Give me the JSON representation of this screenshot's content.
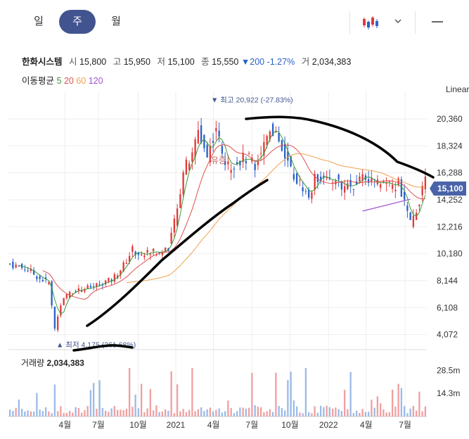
{
  "tabs": [
    {
      "label": "일",
      "active": false
    },
    {
      "label": "주",
      "active": true
    },
    {
      "label": "월",
      "active": false
    }
  ],
  "toolbar": {
    "chart_type_icon": "candlestick-icon",
    "dropdown_icon": "chevron-down-icon",
    "minimize_icon": "minus-icon"
  },
  "stock": {
    "name": "한화시스템",
    "open_label": "시",
    "open": "15,800",
    "high_label": "고",
    "high": "15,950",
    "low_label": "저",
    "low": "15,100",
    "close_label": "종",
    "close": "15,550",
    "change_arrow": "▼",
    "change": "200",
    "change_pct": "-1.27%",
    "volume_label": "거",
    "volume": "2,034,383"
  },
  "moving_average": {
    "label": "이동평균",
    "periods": [
      {
        "value": "5",
        "color": "#3a9a3a"
      },
      {
        "value": "20",
        "color": "#e0504f"
      },
      {
        "value": "60",
        "color": "#f0a050"
      },
      {
        "value": "120",
        "color": "#a050d0"
      }
    ]
  },
  "scale_label": "Linear",
  "colors": {
    "up": "#e03b3b",
    "down": "#2a62c9",
    "accent": "#41548f",
    "current_price_bg": "#4a63a8"
  },
  "chart_data": {
    "type": "candlestick",
    "price_axis": {
      "ticks": [
        "20,360",
        "18,324",
        "16,288",
        "14,252",
        "12,216",
        "10,180",
        "8,144",
        "6,108",
        "4,072"
      ],
      "ylim": [
        3200,
        21900
      ],
      "scale": "linear"
    },
    "time_axis": {
      "ticks": [
        "4월",
        "7월",
        "10월",
        "2021",
        "4월",
        "7월",
        "10월",
        "2022",
        "4월",
        "7월"
      ]
    },
    "current_price": {
      "label": "15,100",
      "value": 15100
    },
    "annotations": {
      "high": {
        "text": "▼ 최고 20,922 (-27.83%)",
        "value": 20922
      },
      "low": {
        "text": "▲ 최저 4,175 (261.68%)",
        "value": 4175
      },
      "event_label": "유증"
    },
    "volume": {
      "label": "거래량",
      "value": "2,034,383",
      "ticks": [
        "28.5m",
        "14.3m"
      ],
      "ylim": [
        0,
        40000000
      ]
    },
    "weekly_close_anchors": [
      [
        0,
        9400
      ],
      [
        6,
        9000
      ],
      [
        10,
        8300
      ],
      [
        13,
        8000
      ],
      [
        14,
        6200
      ],
      [
        15,
        4500
      ],
      [
        17,
        6400
      ],
      [
        20,
        7300
      ],
      [
        24,
        7500
      ],
      [
        28,
        7700
      ],
      [
        31,
        8000
      ],
      [
        34,
        8200
      ],
      [
        38,
        9300
      ],
      [
        41,
        10500
      ],
      [
        44,
        10000
      ],
      [
        47,
        10400
      ],
      [
        50,
        10200
      ],
      [
        53,
        10700
      ],
      [
        56,
        13500
      ],
      [
        58,
        16500
      ],
      [
        61,
        17500
      ],
      [
        63,
        19600
      ],
      [
        66,
        17500
      ],
      [
        69,
        19800
      ],
      [
        71,
        17600
      ],
      [
        73,
        16700
      ],
      [
        76,
        17200
      ],
      [
        79,
        17400
      ],
      [
        82,
        17000
      ],
      [
        85,
        18500
      ],
      [
        87,
        19800
      ],
      [
        89,
        19300
      ],
      [
        92,
        17700
      ],
      [
        95,
        16000
      ],
      [
        98,
        15200
      ],
      [
        100,
        14400
      ],
      [
        102,
        15800
      ],
      [
        105,
        16200
      ],
      [
        107,
        15400
      ],
      [
        109,
        16000
      ],
      [
        111,
        15100
      ],
      [
        113,
        15400
      ],
      [
        115,
        15300
      ],
      [
        118,
        16200
      ],
      [
        120,
        15800
      ],
      [
        123,
        15400
      ],
      [
        125,
        15700
      ],
      [
        128,
        15200
      ],
      [
        130,
        15600
      ],
      [
        132,
        14000
      ],
      [
        134,
        12400
      ],
      [
        136,
        13500
      ],
      [
        138,
        15100
      ],
      [
        139,
        15550
      ]
    ]
  }
}
